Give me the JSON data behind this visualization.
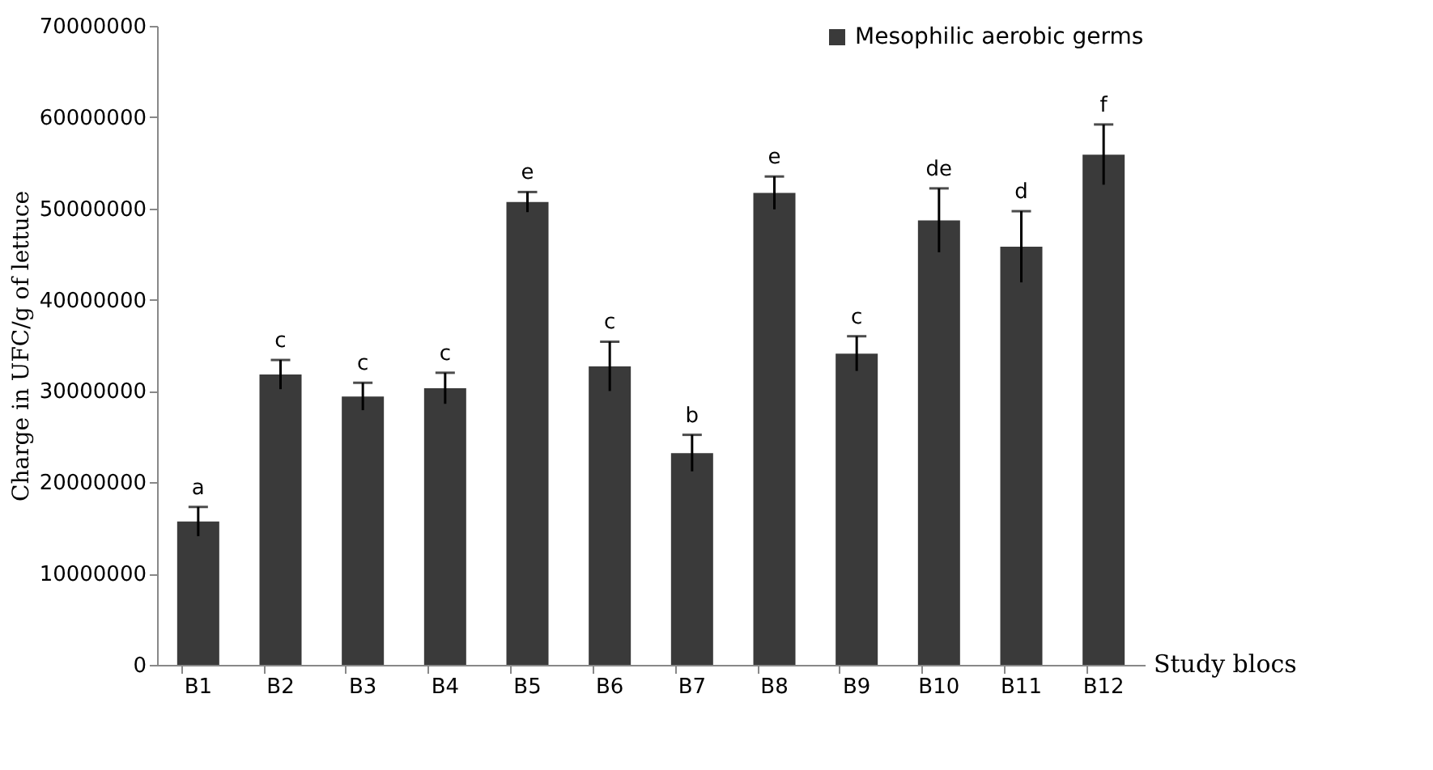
{
  "chart_data": {
    "type": "bar",
    "xlabel": "Study blocs",
    "ylabel": "Charge in UFC/g of lettuce",
    "categories": [
      "B1",
      "B2",
      "B3",
      "B4",
      "B5",
      "B6",
      "B7",
      "B8",
      "B9",
      "B10",
      "B11",
      "B12"
    ],
    "series": [
      {
        "name": "Mesophilic aerobic germs",
        "color": "#3a3a3a",
        "values": [
          15700000,
          31800000,
          29400000,
          30300000,
          50700000,
          32700000,
          23200000,
          51700000,
          34100000,
          48700000,
          45800000,
          55900000
        ],
        "errors": [
          1600000,
          1600000,
          1500000,
          1700000,
          1100000,
          2700000,
          2000000,
          1800000,
          1900000,
          3500000,
          3900000,
          3300000
        ]
      }
    ],
    "ylim": [
      0,
      70000000
    ],
    "yticks": [
      0,
      10000000,
      20000000,
      30000000,
      40000000,
      50000000,
      60000000,
      70000000
    ],
    "grid": false,
    "legend": "top right",
    "annotations": [
      {
        "text": "a",
        "x": "B1",
        "y": 17300000
      },
      {
        "text": "c",
        "x": "B2",
        "y": 33400000
      },
      {
        "text": "c",
        "x": "B3",
        "y": 30900000
      },
      {
        "text": "c",
        "x": "B4",
        "y": 32000000
      },
      {
        "text": "e",
        "x": "B5",
        "y": 51800000
      },
      {
        "text": "c",
        "x": "B6",
        "y": 35400000
      },
      {
        "text": "b",
        "x": "B7",
        "y": 25200000
      },
      {
        "text": "e",
        "x": "B8",
        "y": 53500000
      },
      {
        "text": "c",
        "x": "B9",
        "y": 36000000
      },
      {
        "text": "de",
        "x": "B10",
        "y": 52200000
      },
      {
        "text": "d",
        "x": "B11",
        "y": 49700000
      },
      {
        "text": "f",
        "x": "B12",
        "y": 59200000
      }
    ]
  }
}
